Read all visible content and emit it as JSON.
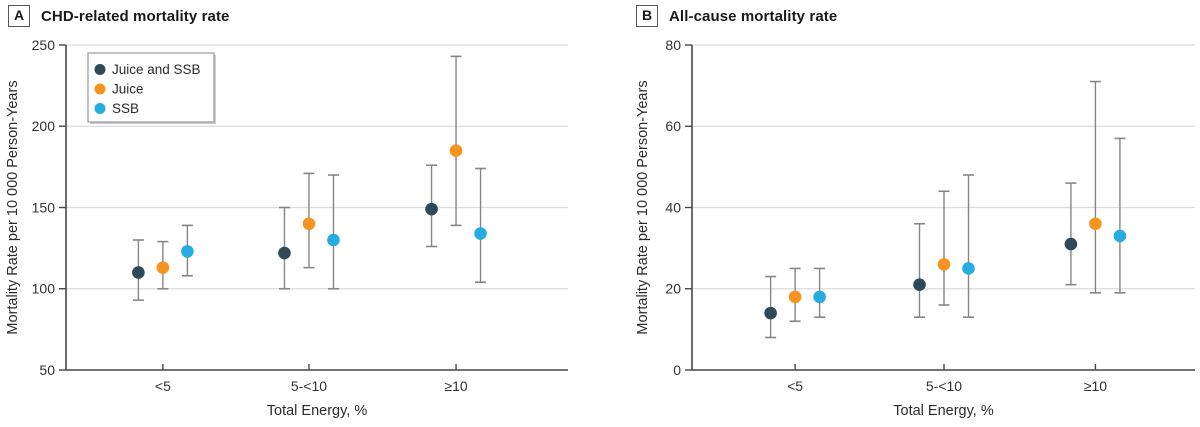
{
  "figure": {
    "panel_a_label": "A",
    "panel_a_title": "CHD-related mortality rate",
    "panel_b_label": "B",
    "panel_b_title": "All-cause mortality rate"
  },
  "style": {
    "axis_color": "#474747",
    "grid_color": "#DCDCDC",
    "error_bar_color": "#868686",
    "tick_text_color": "#333333",
    "label_text_color": "#2b2b2b",
    "legend_border_color": "#999999",
    "legend_shadow_color": "#cccccc",
    "series_dark": "#2E4A59",
    "series_orange": "#F79420",
    "series_blue": "#27ACE2"
  },
  "chart_data": [
    {
      "type": "scatter",
      "panel_label": "A",
      "title": "CHD-related mortality rate",
      "xlabel": "Total Energy, %",
      "ylabel": "Mortality Rate per 10 000 Person-Years",
      "categories": [
        "<5",
        "5-<10",
        "≥10"
      ],
      "ylim": [
        50,
        250
      ],
      "yticks": [
        50,
        100,
        150,
        200,
        250
      ],
      "grid": true,
      "legend": true,
      "legend_position": "top-left",
      "legend_entries": [
        "Juice and SSB",
        "Juice",
        "SSB"
      ],
      "series": [
        {
          "name": "Juice and SSB",
          "color": "#2E4A59",
          "values": [
            110,
            122,
            149
          ],
          "ci_low": [
            93,
            100,
            126
          ],
          "ci_high": [
            130,
            150,
            176
          ]
        },
        {
          "name": "Juice",
          "color": "#F79420",
          "values": [
            113,
            140,
            185
          ],
          "ci_low": [
            100,
            113,
            139
          ],
          "ci_high": [
            129,
            171,
            243
          ]
        },
        {
          "name": "SSB",
          "color": "#27ACE2",
          "values": [
            123,
            130,
            134
          ],
          "ci_low": [
            108,
            100,
            104
          ],
          "ci_high": [
            139,
            170,
            174
          ]
        }
      ]
    },
    {
      "type": "scatter",
      "panel_label": "B",
      "title": "All-cause mortality rate",
      "xlabel": "Total Energy, %",
      "ylabel": "Mortality Rate per 10 000 Person-Years",
      "categories": [
        "<5",
        "5-<10",
        "≥10"
      ],
      "ylim": [
        0,
        80
      ],
      "yticks": [
        0,
        20,
        40,
        60,
        80
      ],
      "grid": true,
      "legend": false,
      "series": [
        {
          "name": "Juice and SSB",
          "color": "#2E4A59",
          "values": [
            14,
            21,
            31
          ],
          "ci_low": [
            8,
            13,
            21
          ],
          "ci_high": [
            23,
            36,
            46
          ]
        },
        {
          "name": "Juice",
          "color": "#F79420",
          "values": [
            18,
            26,
            36
          ],
          "ci_low": [
            12,
            16,
            19
          ],
          "ci_high": [
            25,
            44,
            71
          ]
        },
        {
          "name": "SSB",
          "color": "#27ACE2",
          "values": [
            18,
            25,
            33
          ],
          "ci_low": [
            13,
            13,
            19
          ],
          "ci_high": [
            25,
            48,
            57
          ]
        }
      ]
    }
  ]
}
